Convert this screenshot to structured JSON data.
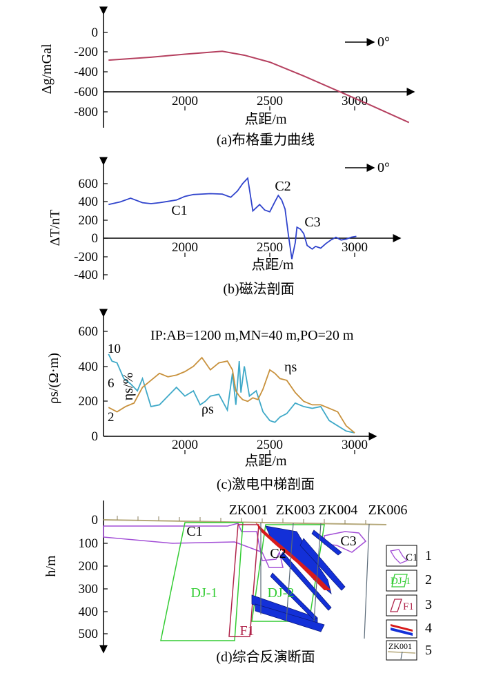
{
  "panels": {
    "a": {
      "caption": "(a)布格重力曲线",
      "ylabel": "Δg/mGal",
      "xlabel": "点距/m",
      "north_label": "0°",
      "yticks": [
        "0",
        "-200",
        "-400",
        "-600",
        "-800"
      ],
      "xticks": [
        "2000",
        "2500",
        "3000"
      ]
    },
    "b": {
      "caption": "(b)磁法剖面",
      "ylabel": "ΔT/nT",
      "xlabel": "点距/m",
      "north_label": "0°",
      "yticks": [
        "600",
        "400",
        "200",
        "0",
        "-200",
        "-400"
      ],
      "xticks": [
        "2000",
        "2500",
        "3000"
      ],
      "annotations": [
        "C1",
        "C2",
        "C3"
      ]
    },
    "c": {
      "caption": "(c)激电中梯剖面",
      "ylabel": "ρs/(Ω·m)",
      "xlabel": "点距/m",
      "params": "IP:AB=1200 m,MN=40 m,PO=20 m",
      "yticks": [
        "0",
        "200",
        "400",
        "600"
      ],
      "xticks": [
        "2000",
        "2500",
        "3000"
      ],
      "eta_axis_label": "ηs/%",
      "eta_ticks": [
        "10",
        "6",
        "2"
      ],
      "series_labels": [
        "ηs",
        "ρs"
      ]
    },
    "d": {
      "caption": "(d)综合反演断面",
      "ylabel": "h/m",
      "yticks": [
        "0",
        "100",
        "200",
        "300",
        "400",
        "500"
      ],
      "boreholes": [
        "ZK001",
        "ZK003",
        "ZK004",
        "ZK006"
      ],
      "bodies": [
        "C1",
        "C2",
        "C3",
        "DJ-1",
        "DJ-2",
        "F1"
      ],
      "legend": [
        {
          "num": "1",
          "text": "C1"
        },
        {
          "num": "2",
          "text": "DJ-1"
        },
        {
          "num": "3",
          "text": "F1"
        },
        {
          "num": "4",
          "text": ""
        },
        {
          "num": "5",
          "text": "ZK001"
        }
      ]
    }
  },
  "colors": {
    "gravity": "#b5405f",
    "magnetic": "#2f43cc",
    "rho": "#3fa9c8",
    "eta": "#c8913c",
    "c_body": "#a24ed6",
    "dj": "#33cc33",
    "fault": "#b0244a",
    "ore_blue": "#1330d8",
    "ore_red": "#d81b1b",
    "ground": "#b5a87a"
  },
  "chart_data": [
    {
      "type": "line",
      "title": "(a)布格重力曲线",
      "xlabel": "点距/m",
      "ylabel": "Δg/mGal",
      "xlim": [
        1550,
        3350
      ],
      "ylim": [
        -950,
        100
      ],
      "series": [
        {
          "x": [
            1550,
            1800,
            2000,
            2220,
            2350,
            2500,
            2700,
            2900,
            3100,
            3320
          ],
          "values": [
            -280,
            -250,
            -220,
            -190,
            -230,
            -300,
            -440,
            -590,
            -740,
            -910
          ]
        }
      ]
    },
    {
      "type": "line",
      "title": "(b)磁法剖面",
      "xlabel": "点距/m",
      "ylabel": "ΔT/nT",
      "xlim": [
        1550,
        3120
      ],
      "ylim": [
        -450,
        750
      ],
      "series": [
        {
          "x": [
            1550,
            1620,
            1680,
            1750,
            1800,
            1850,
            1900,
            1950,
            2000,
            2050,
            2100,
            2150,
            2220,
            2270,
            2310,
            2340,
            2370,
            2400,
            2440,
            2470,
            2500,
            2530,
            2550,
            2570,
            2590,
            2610,
            2630,
            2650,
            2660,
            2680,
            2700,
            2720,
            2750,
            2770,
            2800,
            2830,
            2860,
            2890,
            2920,
            2950,
            2980,
            3010
          ],
          "values": [
            370,
            400,
            440,
            390,
            380,
            390,
            405,
            420,
            460,
            480,
            485,
            490,
            485,
            450,
            520,
            600,
            660,
            300,
            370,
            310,
            290,
            400,
            470,
            420,
            320,
            30,
            -230,
            -50,
            120,
            100,
            50,
            -80,
            -120,
            -90,
            -110,
            -60,
            -20,
            10,
            -20,
            -10,
            10,
            20
          ]
        }
      ]
    },
    {
      "type": "line",
      "title": "(c)激电中梯剖面",
      "xlabel": "点距/m",
      "ylabel": "ρs/(Ω·m)",
      "xlim": [
        1550,
        3120
      ],
      "ylim": [
        0,
        700
      ],
      "series": [
        {
          "x": [
            1550,
            1570,
            1600,
            1640,
            1680,
            1720,
            1750,
            1800,
            1850,
            1900,
            1950,
            2000,
            2050,
            2090,
            2120,
            2150,
            2200,
            2250,
            2280,
            2300,
            2320,
            2330,
            2350,
            2380,
            2420,
            2460,
            2500,
            2530,
            2560,
            2600,
            2650,
            2700,
            2750,
            2800,
            2850,
            2900,
            2950,
            3000
          ],
          "values": [
            470,
            430,
            420,
            330,
            300,
            260,
            330,
            170,
            180,
            230,
            280,
            230,
            260,
            180,
            200,
            230,
            240,
            150,
            360,
            180,
            430,
            250,
            400,
            230,
            260,
            140,
            90,
            80,
            110,
            130,
            190,
            170,
            160,
            170,
            90,
            60,
            30,
            20
          ]
        },
        {
          "x": [
            1550,
            1600,
            1650,
            1700,
            1750,
            1800,
            1850,
            1900,
            1950,
            2000,
            2050,
            2100,
            2150,
            2200,
            2250,
            2280,
            2300,
            2320,
            2340,
            2370,
            2400,
            2430,
            2460,
            2500,
            2530,
            2560,
            2600,
            2650,
            2700,
            2750,
            2800,
            2850,
            2900,
            2950,
            3000
          ],
          "values": [
            165,
            140,
            170,
            190,
            280,
            320,
            360,
            340,
            350,
            370,
            400,
            450,
            380,
            420,
            430,
            380,
            260,
            230,
            210,
            200,
            220,
            210,
            270,
            380,
            360,
            330,
            320,
            250,
            200,
            180,
            180,
            160,
            140,
            60,
            20
          ]
        }
      ]
    }
  ]
}
